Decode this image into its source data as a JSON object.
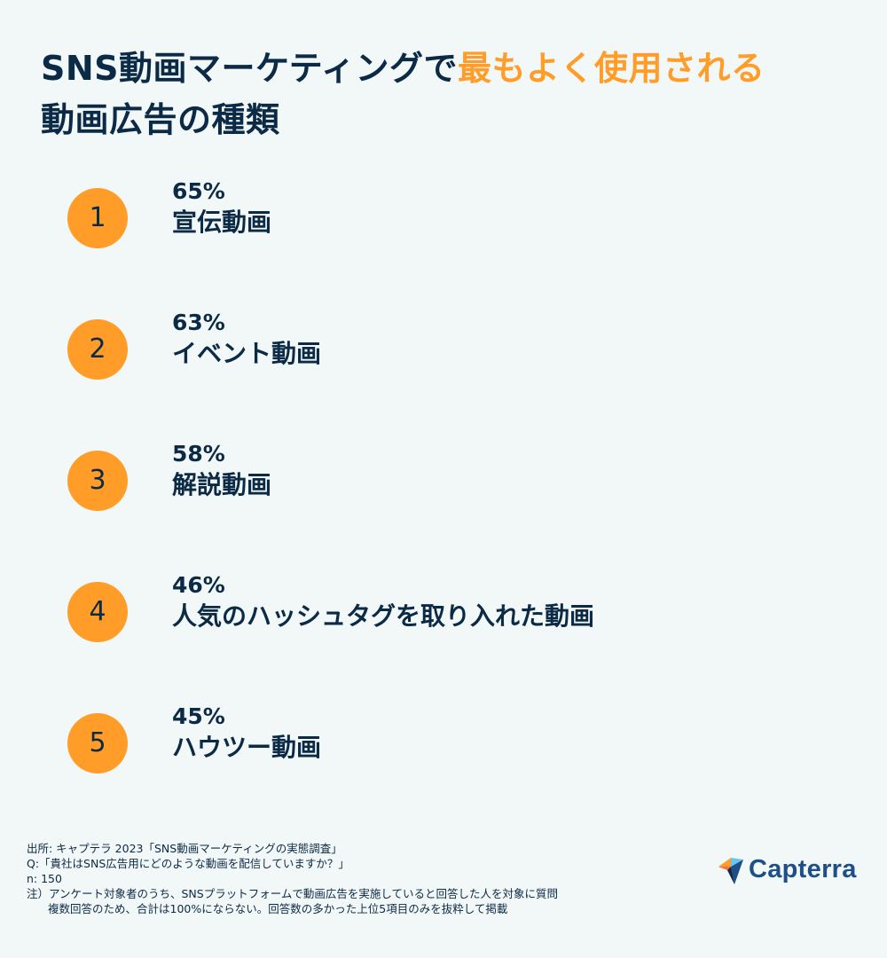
{
  "chart_data": {
    "type": "table",
    "title_part1": "SNS動画マーケティングで",
    "title_accent": "最もよく使用される",
    "title_part2": "動画広告の種類",
    "items": [
      {
        "rank": "1",
        "value_label": "65%",
        "value": 65,
        "label": "宣伝動画"
      },
      {
        "rank": "2",
        "value_label": "63%",
        "value": 63,
        "label": "イベント動画"
      },
      {
        "rank": "3",
        "value_label": "58%",
        "value": 58,
        "label": "解説動画"
      },
      {
        "rank": "4",
        "value_label": "46%",
        "value": 46,
        "label": "人気のハッシュタグを取り入れた動画"
      },
      {
        "rank": "5",
        "value_label": "45%",
        "value": 45,
        "label": "ハウツー動画"
      }
    ]
  },
  "colors": {
    "background": "#f2f7f8",
    "text": "#0b2a45",
    "accent": "#ff9d28",
    "logo_text": "#1e4f86"
  },
  "notes": {
    "source": "出所: キャプテラ 2023「SNS動画マーケティングの実態調査」",
    "question": "Q:「貴社はSNS広告用にどのような動画を配信していますか？」",
    "n": "n: 150",
    "note1": "注）アンケート対象者のうち、SNSプラットフォームで動画広告を実施していると回答した人を対象に質問",
    "note2": "複数回答のため、合計は100%にならない。回答数の多かった上位5項目のみを抜粋して掲載"
  },
  "logo": {
    "text": "Capterra",
    "icon": "capterra-arrow-icon"
  }
}
